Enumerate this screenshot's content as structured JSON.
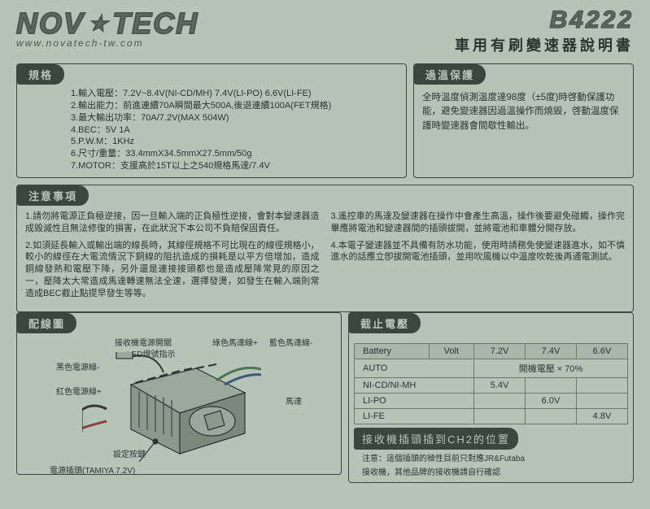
{
  "header": {
    "brand_pre": "NOV",
    "brand_post": "TECH",
    "url": "www.novatech-tw.com",
    "model": "B4222",
    "subtitle": "車用有刷變速器說明書"
  },
  "specs": {
    "title": "規格",
    "items": [
      "1.輸入電壓：7.2V~8.4V(NI-CD/MH) 7.4V(LI-PO) 6.6V(LI-FE)",
      "2.輸出能力：前進連續70A瞬間最大500A,後退連續100A(FET規格)",
      "3.最大輸出功率：70A/7.2V(MAX 504W)",
      "4.BEC：5V 1A",
      "5.P.W.M：1KHz",
      "6.尺寸/重量：33.4mmX34.5mmX27.5mm/50g",
      "7.MOTOR：支援高於15T以上之540規格馬達/7.4V"
    ]
  },
  "protect": {
    "title": "過溫保護",
    "text": "全時溫度偵測溫度達98度（±5度)時啓動保護功能，避免變速器因過溫操作而燒毀，啓動溫度保護時變速器會間歇性輸出。"
  },
  "notes": {
    "title": "注意事項",
    "left": [
      "1.請勿將電源正負極逆接，因一旦輸入端的正負極性逆接，會對本變速器造成毀滅性且無法修復的損害，在此狀況下本公司不負賠保固責任。",
      "2.如須延長輸入或輸出端的線長時，其線徑規格不可比現在的線徑規格小，較小的線徑在大電流情況下銅線的阻抗造成的損耗是以平方倍增加，造成銅線發熱和電壓下降，另外還是連接接頭都也是造成壓降常見的原因之一，壓降太大常造成馬達轉速無法全速，選擇發燙，如發生在輸入端則常造成BEC截止點提早發生等等。"
    ],
    "right": [
      "3.遙控車的馬達及變速器在操作中會產生高溫，操作後要避免碰觸，操作完畢應將電池和變速器間的插頭拔開，並將電池和車體分開存放。",
      "4.本電子變速器並不具備有防水功能，使用時請務免使變速器進水，如不慎進水的話應立卽拔開電池插頭，並用吹風機以中溫度吹乾後再通電測試。"
    ]
  },
  "wiring": {
    "title": "配線圖",
    "labels": {
      "rx_sw": "接收機電源開關",
      "led": "LED燈號指示",
      "green": "綠色馬達線+",
      "blue": "藍色馬達線-",
      "black": "黑色電源線-",
      "red": "紅色電源線+",
      "motor": "馬達",
      "set_btn": "設定按鍵",
      "pwr_plug": "電源插頭(TAMIYA 7.2V)"
    }
  },
  "cutoff": {
    "title": "截止電壓",
    "headers": [
      "Battery",
      "Volt",
      "7.2V",
      "7.4V",
      "6.6V"
    ],
    "rows": [
      {
        "label": "AUTO",
        "v1": "",
        "v2": "開機電壓 × 70%",
        "v3": "",
        "span": true
      },
      {
        "label": "NI-CD/NI-MH",
        "v1": "5.4V",
        "v2": "",
        "v3": ""
      },
      {
        "label": "LI-PO",
        "v1": "",
        "v2": "6.0V",
        "v3": ""
      },
      {
        "label": "LI-FE",
        "v1": "",
        "v2": "",
        "v3": "4.8V"
      }
    ]
  },
  "footer": {
    "box": "接收機插頭插到CH2的位置",
    "note1": "注意：這個插頭的極性目前只對應JR&Futaba",
    "note2": "接收機，其他品牌的接收機請自行確認"
  },
  "colors": {
    "bg": "#b5c3b8",
    "dark": "#3a4640",
    "text": "#2a3632"
  }
}
